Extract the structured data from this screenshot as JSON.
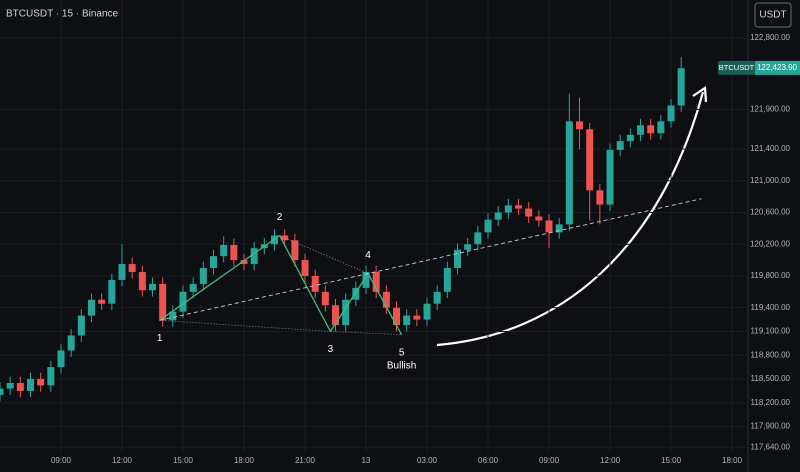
{
  "chart_data": {
    "type": "candlestick",
    "title": "BTCUSDT · 15 · Binance",
    "currency_button": "USDT",
    "categories": [
      null,
      null,
      null,
      null,
      null,
      null,
      "09:00",
      null,
      null,
      null,
      null,
      null,
      "12:00",
      null,
      null,
      null,
      null,
      null,
      "15:00",
      null,
      null,
      null,
      null,
      null,
      "18:00",
      null,
      null,
      null,
      null,
      null,
      "21:00",
      null,
      null,
      null,
      null,
      null,
      "13",
      null,
      null,
      null,
      null,
      null,
      "03:00",
      null,
      null,
      null,
      null,
      null,
      "06:00",
      null,
      null,
      null,
      null,
      null,
      "09:00",
      null,
      null,
      null,
      null,
      null,
      "12:00",
      null,
      null,
      null,
      null,
      null,
      "15:00",
      null,
      null,
      null,
      null,
      null,
      "18:00",
      null
    ],
    "open": [
      118300,
      118380,
      118450,
      118350,
      118500,
      118420,
      118650,
      118860,
      119050,
      119300,
      119500,
      119450,
      119750,
      119950,
      119850,
      119620,
      119700,
      119240,
      119350,
      119600,
      119700,
      119900,
      120050,
      120190,
      120000,
      119950,
      120150,
      120200,
      120310,
      120250,
      120000,
      119800,
      119600,
      119430,
      119180,
      119500,
      119650,
      119850,
      119600,
      119400,
      119180,
      119300,
      119250,
      119450,
      119600,
      119900,
      120130,
      120200,
      120350,
      120510,
      120600,
      120690,
      120650,
      120550,
      120500,
      120350,
      120450,
      121750,
      121650,
      120880,
      120700,
      121390,
      121500,
      121580,
      121700,
      121600,
      121750,
      121950,
      null,
      null,
      null,
      null,
      null,
      null
    ],
    "high": [
      118460,
      118530,
      118530,
      118580,
      118580,
      118730,
      118940,
      119130,
      119380,
      119580,
      119580,
      119830,
      120200,
      120030,
      119930,
      119780,
      119780,
      119430,
      119680,
      119780,
      119980,
      120130,
      120300,
      120270,
      120080,
      120230,
      120280,
      120390,
      120390,
      120330,
      120080,
      119880,
      119680,
      119510,
      119580,
      119730,
      119930,
      119930,
      119680,
      119480,
      119380,
      119380,
      119530,
      119680,
      119980,
      120210,
      120280,
      120430,
      120590,
      120680,
      120770,
      120770,
      120730,
      120630,
      120580,
      120530,
      122100,
      122050,
      121730,
      120960,
      121470,
      121580,
      121660,
      121780,
      121780,
      121830,
      122030,
      122560,
      null,
      null,
      null,
      null,
      null,
      null
    ],
    "low": [
      118220,
      118300,
      118270,
      118270,
      118340,
      118340,
      118570,
      118780,
      118970,
      119220,
      119370,
      119370,
      119670,
      119770,
      119540,
      119540,
      119160,
      119160,
      119270,
      119520,
      119620,
      119820,
      119970,
      119920,
      119870,
      119870,
      120070,
      120120,
      120170,
      119920,
      119720,
      119520,
      119350,
      119100,
      119100,
      119420,
      119570,
      119520,
      119320,
      119100,
      119100,
      119170,
      119170,
      119370,
      119520,
      119820,
      120050,
      120120,
      120270,
      120430,
      120520,
      120570,
      120470,
      120420,
      120150,
      120270,
      120370,
      121400,
      120500,
      120450,
      120620,
      121310,
      121420,
      121500,
      121520,
      121520,
      121670,
      121870,
      null,
      null,
      null,
      null,
      null,
      null
    ],
    "close": [
      118380,
      118450,
      118350,
      118500,
      118420,
      118650,
      118860,
      119050,
      119300,
      119500,
      119450,
      119750,
      119950,
      119850,
      119620,
      119700,
      119240,
      119350,
      119600,
      119700,
      119900,
      120050,
      120190,
      120000,
      119950,
      120150,
      120200,
      120310,
      120250,
      120000,
      119800,
      119600,
      119430,
      119180,
      119500,
      119650,
      119850,
      119600,
      119400,
      119180,
      119300,
      119250,
      119450,
      119600,
      119900,
      120130,
      120200,
      120350,
      120510,
      120600,
      120690,
      120650,
      120550,
      120500,
      120350,
      120450,
      121750,
      121650,
      120880,
      120700,
      121390,
      121500,
      121580,
      121700,
      121600,
      121750,
      121950,
      122420,
      null,
      null,
      null,
      null,
      null,
      null
    ],
    "up_color": "#26a69a",
    "down_color": "#ef5350",
    "ylim": [
      117580,
      123280
    ],
    "yticks": [
      {
        "value": 117640,
        "label": "117,640.00"
      },
      {
        "value": 117900,
        "label": "117,900.00"
      },
      {
        "value": 118200,
        "label": "118,200.00"
      },
      {
        "value": 118500,
        "label": "118,500.00"
      },
      {
        "value": 118800,
        "label": "118,800.00"
      },
      {
        "value": 119100,
        "label": "119,100.00"
      },
      {
        "value": 119400,
        "label": "119,400.00"
      },
      {
        "value": 119800,
        "label": "119,800.00"
      },
      {
        "value": 120200,
        "label": "120,200.00"
      },
      {
        "value": 120600,
        "label": "120,600.00"
      },
      {
        "value": 121000,
        "label": "121,000.00"
      },
      {
        "value": 121400,
        "label": "121,400.00"
      },
      {
        "value": 121900,
        "label": "121,900.00"
      },
      {
        "value": 122800,
        "label": "122,800.00"
      }
    ],
    "last_price": {
      "symbol": "BTCUSDT",
      "value": 122423.9,
      "label": "122,423.90"
    },
    "pattern": {
      "color": "#3fbf7f",
      "points": [
        {
          "label": "1",
          "x": 15.7,
          "y": 119240
        },
        {
          "label": "2",
          "x": 27.5,
          "y": 120310
        },
        {
          "label": "3",
          "x": 32.5,
          "y": 119100
        },
        {
          "label": "4",
          "x": 36.2,
          "y": 119830
        },
        {
          "label": "5",
          "x": 39.5,
          "y": 119060
        }
      ],
      "annotation": "Bullish"
    }
  }
}
